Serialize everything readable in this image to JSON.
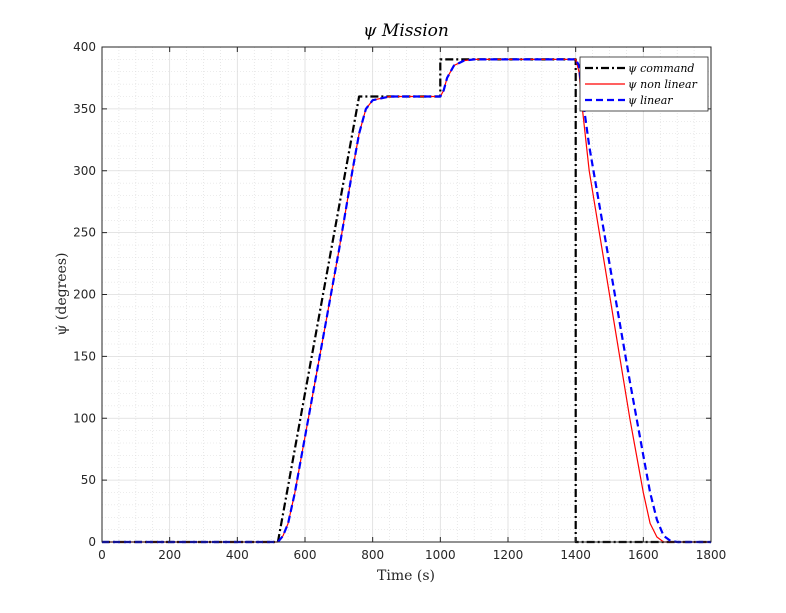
{
  "chart_data": {
    "type": "line",
    "title": "ψ Mission",
    "xlabel": "Time (s)",
    "ylabel": "ψ̇ (degrees)",
    "xlim": [
      0,
      1800
    ],
    "ylim": [
      0,
      400
    ],
    "xticks": [
      0,
      200,
      400,
      600,
      800,
      1000,
      1200,
      1400,
      1600,
      1800
    ],
    "yticks": [
      0,
      50,
      100,
      150,
      200,
      250,
      300,
      350,
      400
    ],
    "grid": true,
    "minor_grid": true,
    "legend_position": "top-right",
    "series": [
      {
        "name": "ψ command",
        "color": "#000000",
        "style": "dashdot",
        "x": [
          0,
          520,
          760,
          1000,
          1000,
          1400,
          1400,
          1800
        ],
        "y": [
          0,
          0,
          360,
          360,
          390,
          390,
          0,
          0
        ]
      },
      {
        "name": "ψ non linear",
        "color": "#ff0000",
        "style": "solid",
        "x": [
          0,
          520,
          535,
          550,
          570,
          590,
          620,
          700,
          740,
          760,
          780,
          800,
          850,
          1000,
          1010,
          1020,
          1040,
          1070,
          1100,
          1400,
          1410,
          1420,
          1440,
          1500,
          1560,
          1600,
          1620,
          1640,
          1660,
          1700,
          1800
        ],
        "y": [
          0,
          0,
          5,
          15,
          40,
          70,
          115,
          235,
          300,
          330,
          350,
          357,
          360,
          360,
          365,
          375,
          385,
          389,
          390,
          390,
          380,
          350,
          300,
          200,
          100,
          40,
          15,
          4,
          0,
          0,
          0
        ]
      },
      {
        "name": "ψ linear",
        "color": "#0000ff",
        "style": "dashed",
        "x": [
          0,
          520,
          535,
          550,
          570,
          590,
          620,
          700,
          740,
          760,
          780,
          800,
          850,
          1000,
          1010,
          1020,
          1040,
          1070,
          1100,
          1400,
          1410,
          1420,
          1440,
          1500,
          1560,
          1600,
          1620,
          1640,
          1660,
          1680,
          1700,
          1800
        ],
        "y": [
          0,
          0,
          5,
          15,
          40,
          70,
          115,
          235,
          300,
          330,
          350,
          357,
          360,
          360,
          365,
          375,
          385,
          389,
          390,
          390,
          385,
          360,
          320,
          225,
          130,
          70,
          40,
          18,
          5,
          1,
          0,
          0
        ]
      }
    ]
  }
}
